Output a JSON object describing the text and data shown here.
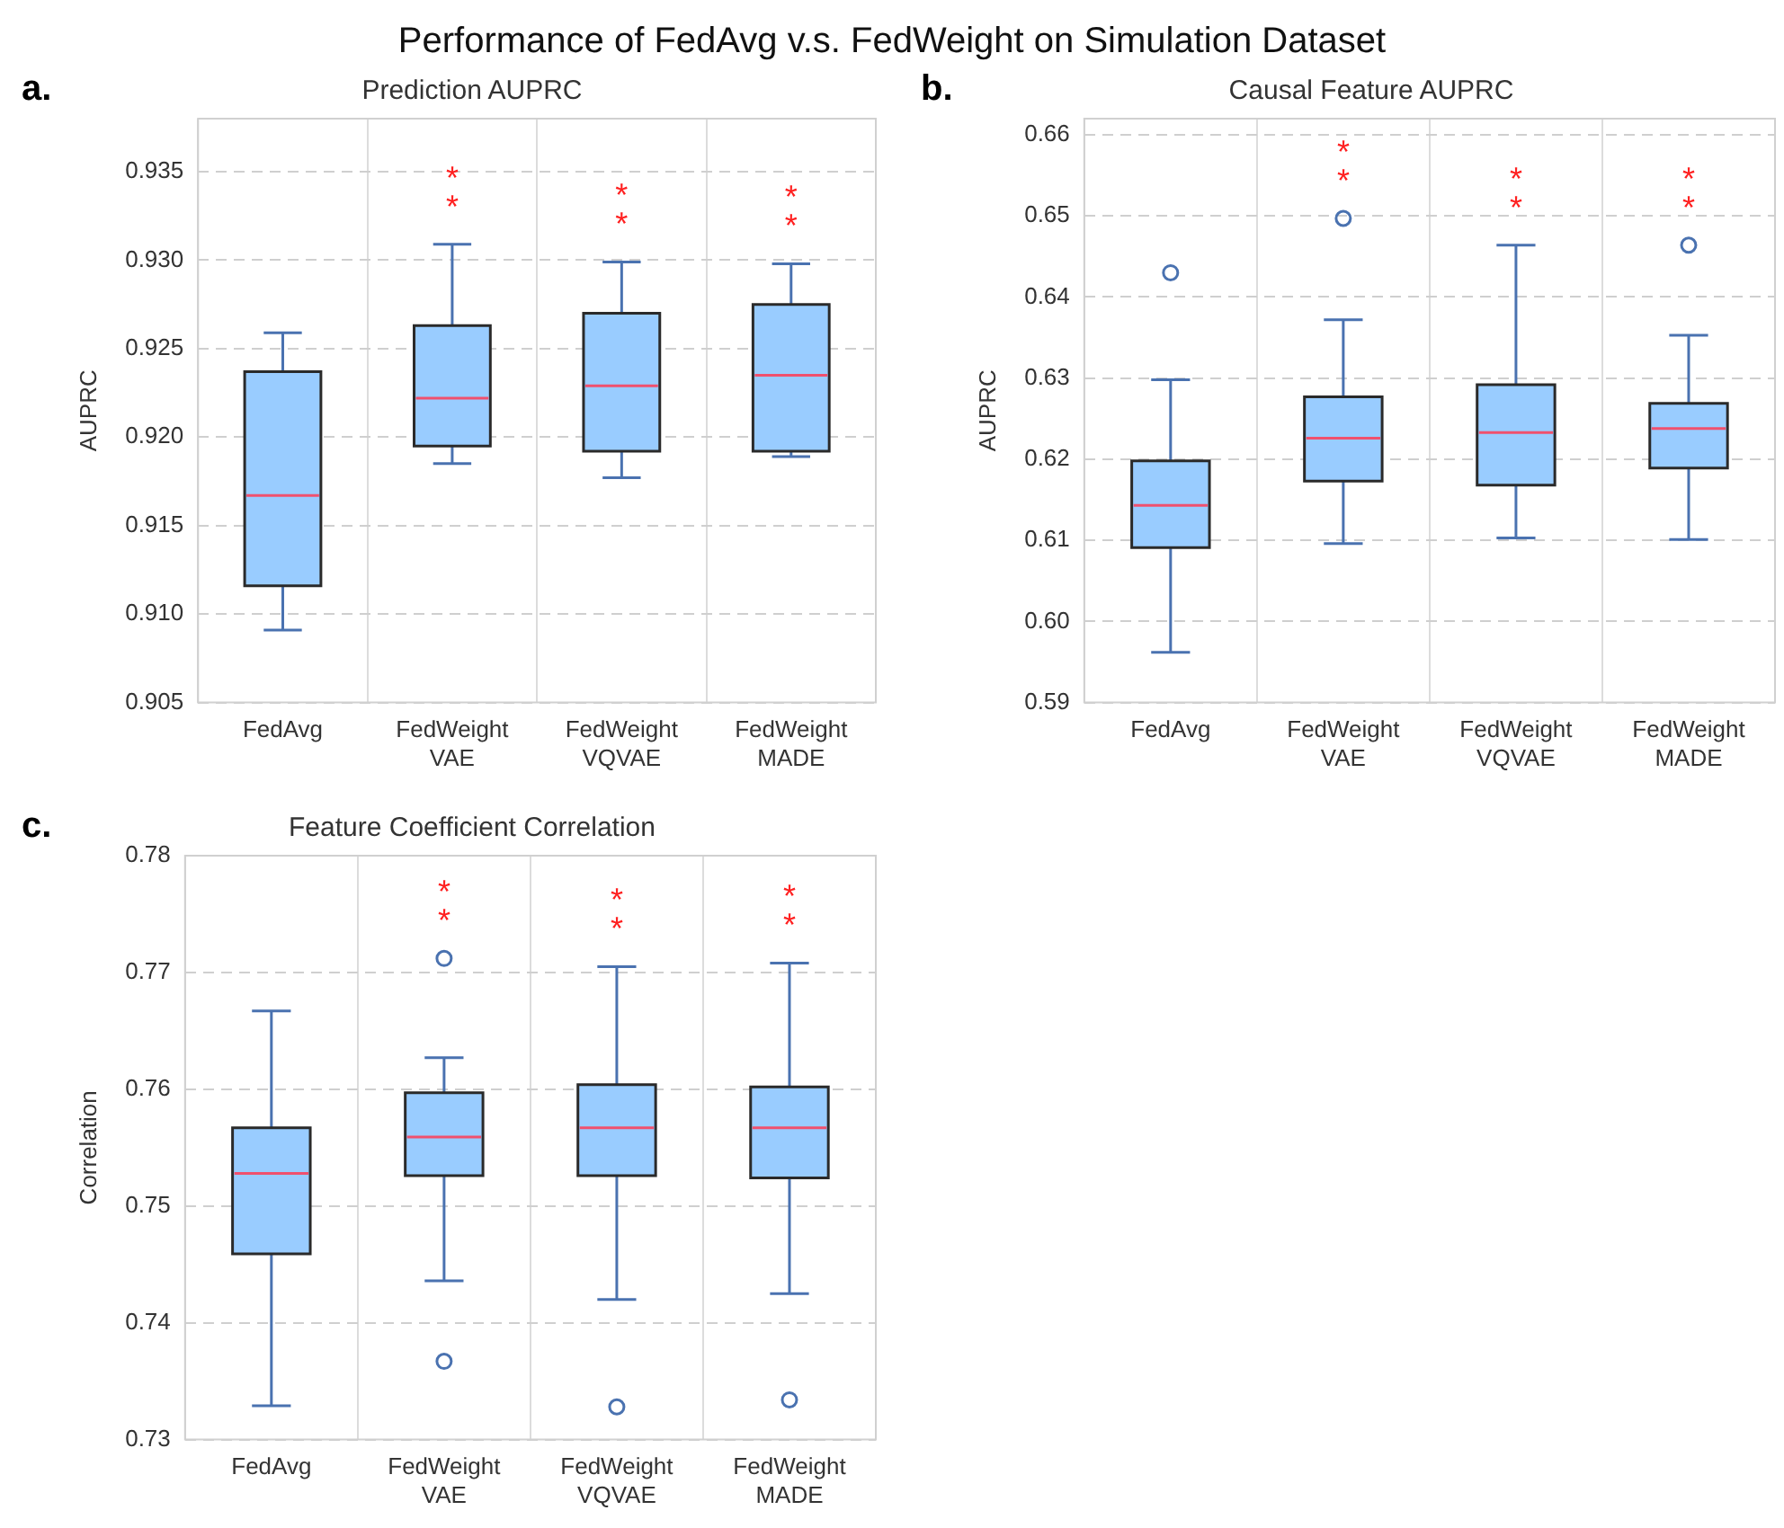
{
  "chart_data": [
    {
      "type": "other",
      "title": "Performance of FedAvg v.s. FedWeight on Simulation Dataset"
    },
    {
      "type": "box",
      "title": "Prediction AUPRC",
      "ylabel": "AUPRC",
      "categories": [
        "FedAvg",
        "FedWeight\nVAE",
        "FedWeight\nVQVAE",
        "FedWeight\nMADE"
      ],
      "ylim": [
        0.905,
        0.938
      ],
      "yticks": [
        0.905,
        {
          "value": 0.91,
          "label": "0.910"
        },
        0.915,
        {
          "value": 0.92,
          "label": "0.920"
        },
        0.925,
        {
          "value": 0.93,
          "label": "0.930"
        },
        0.935
      ],
      "grid": true,
      "series": [
        {
          "color": "#99ccff",
          "boxes": [
            {
              "low": 0.9091,
              "q1": 0.9116,
              "median": 0.9167,
              "q3": 0.9237,
              "high": 0.9259
            },
            {
              "low": 0.9185,
              "q1": 0.9195,
              "median": 0.9222,
              "q3": 0.9263,
              "high": 0.9309
            },
            {
              "low": 0.9177,
              "q1": 0.9192,
              "median": 0.9229,
              "q3": 0.927,
              "high": 0.9299
            },
            {
              "low": 0.9189,
              "q1": 0.9192,
              "median": 0.9235,
              "q3": 0.9275,
              "high": 0.9298
            }
          ]
        }
      ],
      "annotations": [
        "a.",
        "*\n*",
        "*\n*",
        "*\n*"
      ]
    },
    {
      "type": "box",
      "title": "Causal Feature AUPRC",
      "ylabel": "AUPRC",
      "categories": [
        "FedAvg",
        "FedWeight\nVAE",
        "FedWeight\nVQVAE",
        "FedWeight\nMADE"
      ],
      "ylim": [
        0.59,
        0.662
      ],
      "yticks": [
        0.59,
        {
          "value": 0.6,
          "label": "0.60"
        },
        0.61,
        0.62,
        0.63,
        0.64,
        0.65,
        0.66
      ],
      "grid": true,
      "series": [
        {
          "color": "#99ccff",
          "boxes": [
            {
              "low": 0.5962,
              "q1": 0.6091,
              "median": 0.6143,
              "q3": 0.6198,
              "high": 0.6298,
              "outliers": [
                0.643
              ]
            },
            {
              "low": 0.6096,
              "q1": 0.6173,
              "median": 0.6226,
              "q3": 0.6277,
              "high": 0.6372,
              "outliers": [
                0.6497
              ]
            },
            {
              "low": 0.6103,
              "q1": 0.6168,
              "median": 0.6233,
              "q3": 0.6292,
              "high": 0.6464
            },
            {
              "low": 0.6101,
              "q1": 0.6189,
              "median": 0.6238,
              "q3": 0.6269,
              "high": 0.6353,
              "outliers": [
                0.6464
              ]
            }
          ]
        }
      ],
      "annotations": [
        "b.",
        "*\n*",
        "*\n*",
        "*\n*"
      ]
    },
    {
      "type": "box",
      "title": "Feature Coefficient Correlation",
      "ylabel": "Correlation",
      "categories": [
        "FedAvg",
        "FedWeight\nVAE",
        "FedWeight\nVQVAE",
        "FedWeight\nMADE"
      ],
      "ylim": [
        0.73,
        0.78
      ],
      "yticks": [
        0.73,
        0.74,
        0.75,
        0.76,
        0.77,
        0.78
      ],
      "grid": true,
      "series": [
        {
          "color": "#99ccff",
          "boxes": [
            {
              "low": 0.7329,
              "q1": 0.7459,
              "median": 0.7528,
              "q3": 0.7567,
              "high": 0.7667
            },
            {
              "low": 0.7436,
              "q1": 0.7526,
              "median": 0.7559,
              "q3": 0.7597,
              "high": 0.7627,
              "outliers": [
                0.7712,
                0.7367
              ]
            },
            {
              "low": 0.742,
              "q1": 0.7526,
              "median": 0.7567,
              "q3": 0.7604,
              "high": 0.7705,
              "outliers": [
                0.7328
              ]
            },
            {
              "low": 0.7425,
              "q1": 0.7524,
              "median": 0.7567,
              "q3": 0.7602,
              "high": 0.7708,
              "outliers": [
                0.7334
              ]
            }
          ]
        }
      ],
      "annotations": [
        "c.",
        "*\n*",
        "*\n*",
        "*\n*"
      ]
    }
  ]
}
